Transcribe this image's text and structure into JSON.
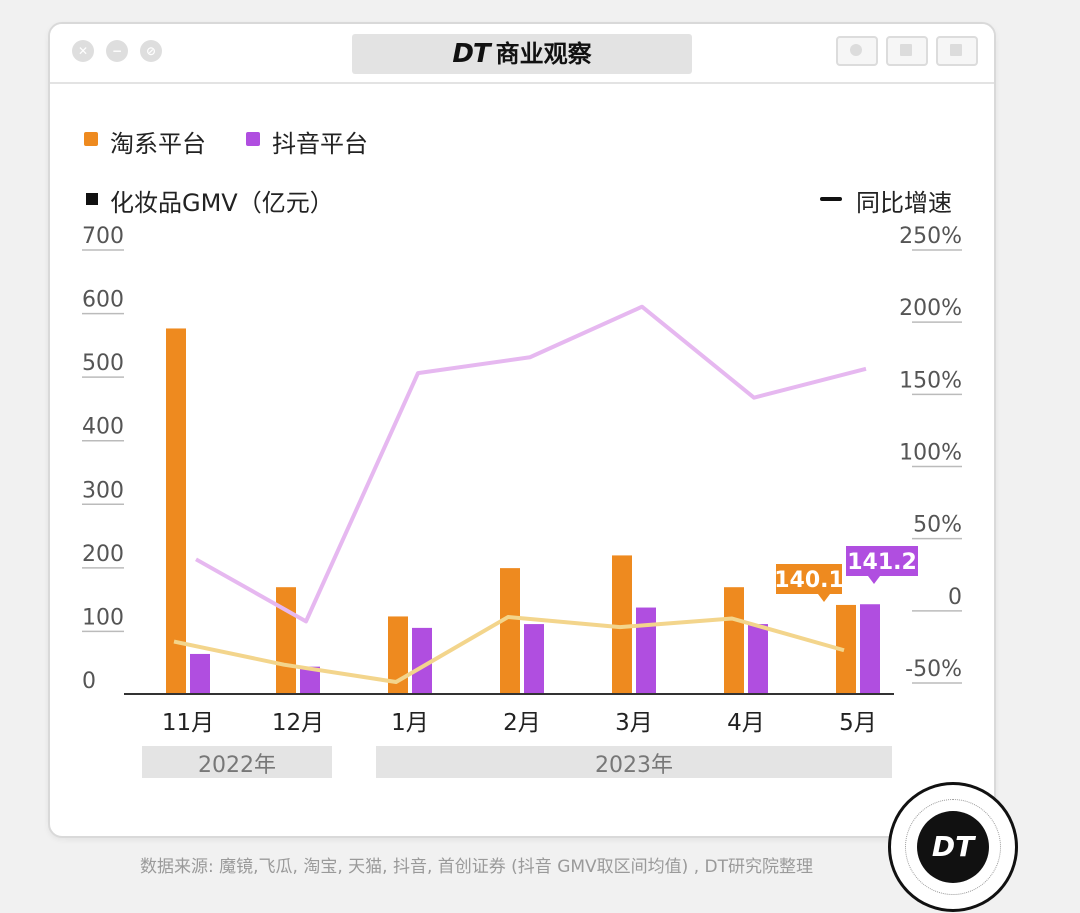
{
  "window": {
    "title_logo": "DT",
    "title_text": "商业观察"
  },
  "legend": {
    "taobao": "淘系平台",
    "douyin": "抖音平台",
    "gmv_label": "化妆品GMV（亿元）",
    "growth_label": "同比增速"
  },
  "colors": {
    "taobao_bar": "#ee8a1f",
    "douyin_bar": "#b04ee0",
    "taobao_line": "#f3d58c",
    "douyin_line": "#e6b8f0",
    "axis": "#333333"
  },
  "chart_data": {
    "type": "bar",
    "categories": [
      "11月",
      "12月",
      "1月",
      "2月",
      "3月",
      "4月",
      "5月"
    ],
    "year_groups": [
      {
        "label": "2022年",
        "months": [
          "11月",
          "12月"
        ]
      },
      {
        "label": "2023年",
        "months": [
          "1月",
          "2月",
          "3月",
          "4月",
          "5月"
        ]
      }
    ],
    "left_axis": {
      "ylim": [
        0,
        700
      ],
      "ticks": [
        "0",
        "100",
        "200",
        "300",
        "400",
        "500",
        "600",
        "700"
      ]
    },
    "right_axis": {
      "ylim": [
        -50,
        250
      ],
      "ticks": [
        "-50%",
        "0",
        "50%",
        "100%",
        "150%",
        "200%",
        "250%"
      ]
    },
    "series": [
      {
        "name": "淘系平台",
        "kind": "bar",
        "axis": "left",
        "values": [
          575,
          168,
          122,
          198,
          218,
          168,
          140.1
        ]
      },
      {
        "name": "抖音平台",
        "kind": "bar",
        "axis": "left",
        "values": [
          63,
          43,
          104,
          110,
          136,
          110,
          141.2
        ]
      },
      {
        "name": "淘系平台",
        "kind": "line",
        "axis": "right",
        "values": [
          -22,
          -38,
          -50,
          -5,
          -12,
          -6,
          -28
        ]
      },
      {
        "name": "抖音平台",
        "kind": "line",
        "axis": "right",
        "values": [
          35,
          -8,
          164,
          175,
          210,
          147,
          167
        ]
      }
    ],
    "data_labels": [
      {
        "series": "淘系平台",
        "category": "5月",
        "text": "140.1"
      },
      {
        "series": "抖音平台",
        "category": "5月",
        "text": "141.2"
      }
    ]
  },
  "source_text": "数据来源: 魔镜,飞瓜, 淘宝, 天猫, 抖音, 首创证券 (抖音 GMV取区间均值) , DT研究院整理",
  "badge_text": "DT"
}
